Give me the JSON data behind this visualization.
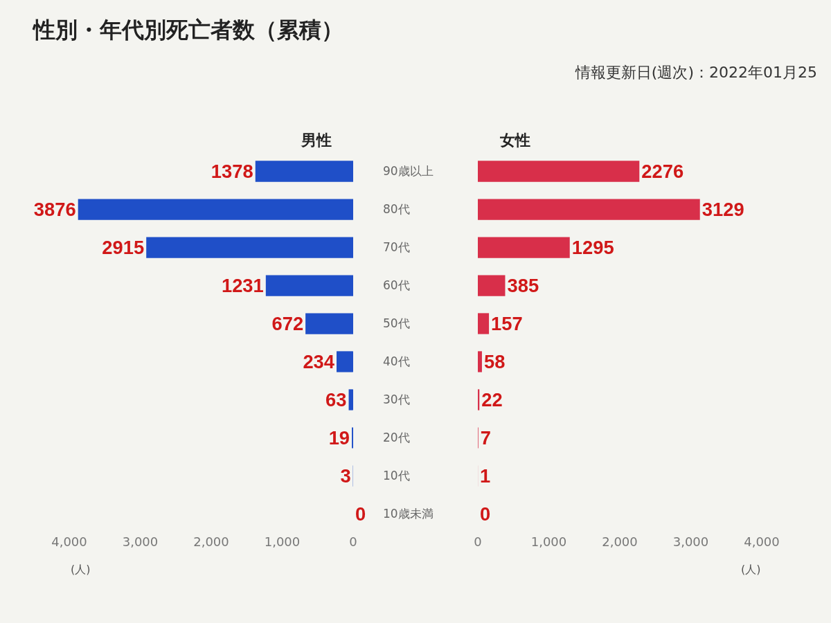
{
  "chart_data": [
    {
      "type": "bar",
      "title": "性別・年代別死亡者数（累積）",
      "orientation": "horizontal",
      "categories": [
        "90歳以上",
        "80代",
        "70代",
        "60代",
        "50代",
        "40代",
        "30代",
        "20代",
        "10代",
        "10歳未満"
      ],
      "series": [
        {
          "name": "男性",
          "color": "#1f4fc8",
          "values": [
            1378,
            3876,
            2915,
            1231,
            672,
            234,
            63,
            19,
            3,
            0
          ]
        }
      ],
      "xlim": [
        4000,
        0
      ],
      "xticks": [
        {
          "value": 4000,
          "label": "4,000"
        },
        {
          "value": 3000,
          "label": "3,000"
        },
        {
          "value": 2000,
          "label": "2,000"
        },
        {
          "value": 1000,
          "label": "1,000"
        },
        0
      ],
      "xlabel": "(人)",
      "data_labels": true,
      "grid": false,
      "legend": false
    },
    {
      "type": "bar",
      "subtitle": "情報更新日(週次)：2022年01月25",
      "orientation": "horizontal",
      "categories": [
        null,
        null,
        null,
        null,
        null,
        null,
        null,
        null,
        null,
        null
      ],
      "series": [
        {
          "name": "女性",
          "color": "#d82f4a",
          "values": [
            2276,
            3129,
            1295,
            385,
            157,
            58,
            22,
            7,
            1,
            0
          ]
        }
      ],
      "xlim": [
        0,
        4000
      ],
      "xticks": [
        0,
        {
          "value": 1000,
          "label": "1,000"
        },
        {
          "value": 2000,
          "label": "2,000"
        },
        {
          "value": 3000,
          "label": "3,000"
        },
        {
          "value": 4000,
          "label": "4,000"
        }
      ],
      "xlabel": "(人)",
      "data_labels": true,
      "grid": false,
      "legend": false
    }
  ]
}
